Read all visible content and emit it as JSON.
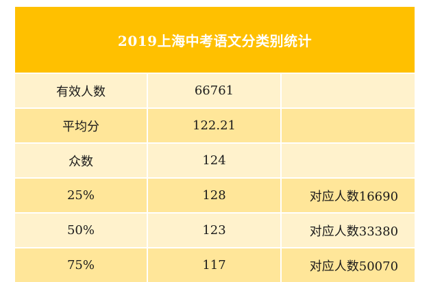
{
  "table": {
    "title": "2019上海中考语文分类别统计",
    "rows": [
      {
        "label": "有效人数",
        "value": "66761",
        "note": ""
      },
      {
        "label": "平均分",
        "value": "122.21",
        "note": ""
      },
      {
        "label": "众数",
        "value": "124",
        "note": ""
      },
      {
        "label": "25%",
        "value": "128",
        "note": "对应人数16690"
      },
      {
        "label": "50%",
        "value": "123",
        "note": "对应人数33380"
      },
      {
        "label": "75%",
        "value": "117",
        "note": "对应人数50070"
      }
    ]
  },
  "colors": {
    "header": "#ffc000",
    "row_light": "#fff2cc",
    "row_dark": "#ffe699"
  }
}
